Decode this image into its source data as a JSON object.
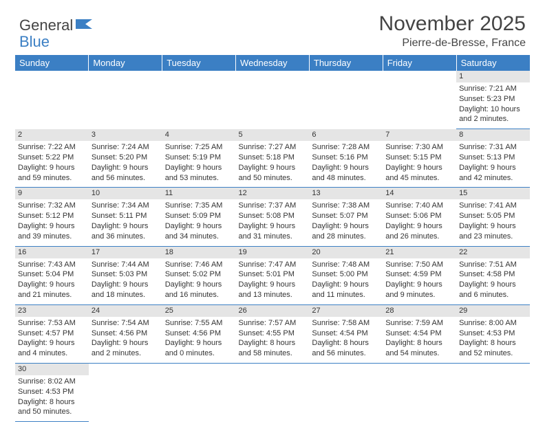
{
  "brand": {
    "part1": "General",
    "part2": "Blue"
  },
  "title": "November 2025",
  "location": "Pierre-de-Bresse, France",
  "dayHeaders": [
    "Sunday",
    "Monday",
    "Tuesday",
    "Wednesday",
    "Thursday",
    "Friday",
    "Saturday"
  ],
  "colors": {
    "headerBg": "#3b7fc4",
    "headerText": "#ffffff",
    "dayNumBg": "#e5e5e5",
    "borderColor": "#3b7fc4",
    "textColor": "#333333",
    "pageBg": "#ffffff"
  },
  "weeks": [
    [
      null,
      null,
      null,
      null,
      null,
      null,
      {
        "n": "1",
        "sunrise": "7:21 AM",
        "sunset": "5:23 PM",
        "daylight": "10 hours and 2 minutes."
      }
    ],
    [
      {
        "n": "2",
        "sunrise": "7:22 AM",
        "sunset": "5:22 PM",
        "daylight": "9 hours and 59 minutes."
      },
      {
        "n": "3",
        "sunrise": "7:24 AM",
        "sunset": "5:20 PM",
        "daylight": "9 hours and 56 minutes."
      },
      {
        "n": "4",
        "sunrise": "7:25 AM",
        "sunset": "5:19 PM",
        "daylight": "9 hours and 53 minutes."
      },
      {
        "n": "5",
        "sunrise": "7:27 AM",
        "sunset": "5:18 PM",
        "daylight": "9 hours and 50 minutes."
      },
      {
        "n": "6",
        "sunrise": "7:28 AM",
        "sunset": "5:16 PM",
        "daylight": "9 hours and 48 minutes."
      },
      {
        "n": "7",
        "sunrise": "7:30 AM",
        "sunset": "5:15 PM",
        "daylight": "9 hours and 45 minutes."
      },
      {
        "n": "8",
        "sunrise": "7:31 AM",
        "sunset": "5:13 PM",
        "daylight": "9 hours and 42 minutes."
      }
    ],
    [
      {
        "n": "9",
        "sunrise": "7:32 AM",
        "sunset": "5:12 PM",
        "daylight": "9 hours and 39 minutes."
      },
      {
        "n": "10",
        "sunrise": "7:34 AM",
        "sunset": "5:11 PM",
        "daylight": "9 hours and 36 minutes."
      },
      {
        "n": "11",
        "sunrise": "7:35 AM",
        "sunset": "5:09 PM",
        "daylight": "9 hours and 34 minutes."
      },
      {
        "n": "12",
        "sunrise": "7:37 AM",
        "sunset": "5:08 PM",
        "daylight": "9 hours and 31 minutes."
      },
      {
        "n": "13",
        "sunrise": "7:38 AM",
        "sunset": "5:07 PM",
        "daylight": "9 hours and 28 minutes."
      },
      {
        "n": "14",
        "sunrise": "7:40 AM",
        "sunset": "5:06 PM",
        "daylight": "9 hours and 26 minutes."
      },
      {
        "n": "15",
        "sunrise": "7:41 AM",
        "sunset": "5:05 PM",
        "daylight": "9 hours and 23 minutes."
      }
    ],
    [
      {
        "n": "16",
        "sunrise": "7:43 AM",
        "sunset": "5:04 PM",
        "daylight": "9 hours and 21 minutes."
      },
      {
        "n": "17",
        "sunrise": "7:44 AM",
        "sunset": "5:03 PM",
        "daylight": "9 hours and 18 minutes."
      },
      {
        "n": "18",
        "sunrise": "7:46 AM",
        "sunset": "5:02 PM",
        "daylight": "9 hours and 16 minutes."
      },
      {
        "n": "19",
        "sunrise": "7:47 AM",
        "sunset": "5:01 PM",
        "daylight": "9 hours and 13 minutes."
      },
      {
        "n": "20",
        "sunrise": "7:48 AM",
        "sunset": "5:00 PM",
        "daylight": "9 hours and 11 minutes."
      },
      {
        "n": "21",
        "sunrise": "7:50 AM",
        "sunset": "4:59 PM",
        "daylight": "9 hours and 9 minutes."
      },
      {
        "n": "22",
        "sunrise": "7:51 AM",
        "sunset": "4:58 PM",
        "daylight": "9 hours and 6 minutes."
      }
    ],
    [
      {
        "n": "23",
        "sunrise": "7:53 AM",
        "sunset": "4:57 PM",
        "daylight": "9 hours and 4 minutes."
      },
      {
        "n": "24",
        "sunrise": "7:54 AM",
        "sunset": "4:56 PM",
        "daylight": "9 hours and 2 minutes."
      },
      {
        "n": "25",
        "sunrise": "7:55 AM",
        "sunset": "4:56 PM",
        "daylight": "9 hours and 0 minutes."
      },
      {
        "n": "26",
        "sunrise": "7:57 AM",
        "sunset": "4:55 PM",
        "daylight": "8 hours and 58 minutes."
      },
      {
        "n": "27",
        "sunrise": "7:58 AM",
        "sunset": "4:54 PM",
        "daylight": "8 hours and 56 minutes."
      },
      {
        "n": "28",
        "sunrise": "7:59 AM",
        "sunset": "4:54 PM",
        "daylight": "8 hours and 54 minutes."
      },
      {
        "n": "29",
        "sunrise": "8:00 AM",
        "sunset": "4:53 PM",
        "daylight": "8 hours and 52 minutes."
      }
    ],
    [
      {
        "n": "30",
        "sunrise": "8:02 AM",
        "sunset": "4:53 PM",
        "daylight": "8 hours and 50 minutes."
      },
      null,
      null,
      null,
      null,
      null,
      null
    ]
  ],
  "labels": {
    "sunrise": "Sunrise:",
    "sunset": "Sunset:",
    "daylight": "Daylight:"
  }
}
